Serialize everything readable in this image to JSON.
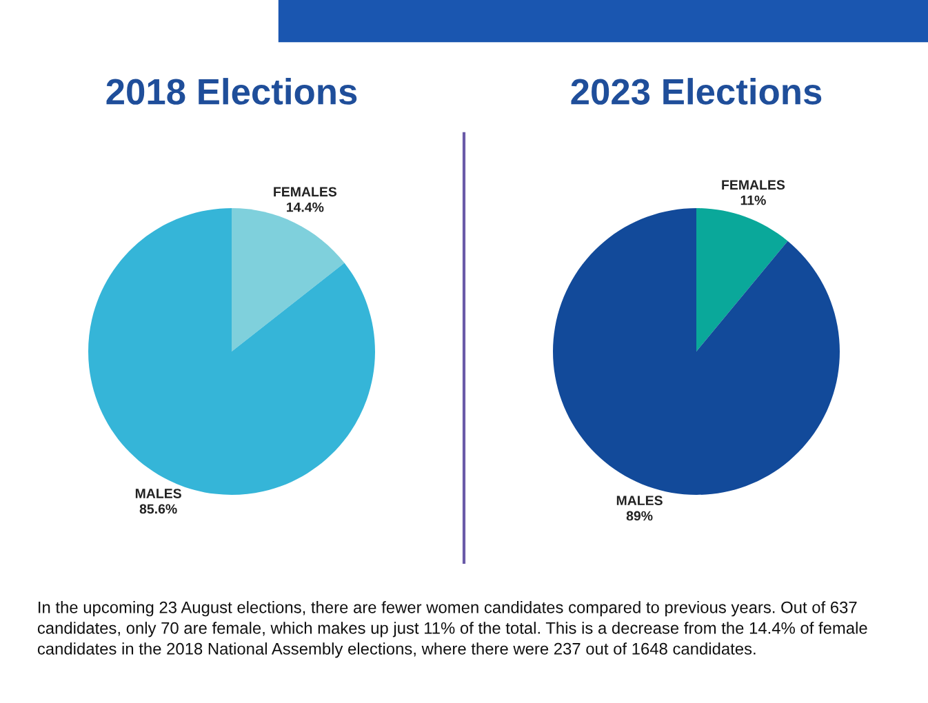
{
  "chart_data": [
    {
      "type": "pie",
      "title": "2018 Elections",
      "categories": [
        "FEMALES",
        "MALES"
      ],
      "values": [
        14.4,
        85.6
      ],
      "value_labels": [
        "14.4%",
        "85.6%"
      ],
      "colors": [
        "#7fd0dc",
        "#35b5d8"
      ]
    },
    {
      "type": "pie",
      "title": "2023 Elections",
      "categories": [
        "FEMALES",
        "MALES"
      ],
      "values": [
        11,
        89
      ],
      "value_labels": [
        "11%",
        "89%"
      ],
      "colors": [
        "#0aa89a",
        "#124a9a"
      ],
      "annotations": [
        "In the upcoming 23 August elections, there are fewer women candidates compared to previous years. Out of 637 candidates, only 70 are female, which makes up just 11% of the total. This is a decrease from the 14.4% of female candidates in the 2018 National Assembly elections, where there were 237 out of 1648 candidates."
      ]
    }
  ]
}
